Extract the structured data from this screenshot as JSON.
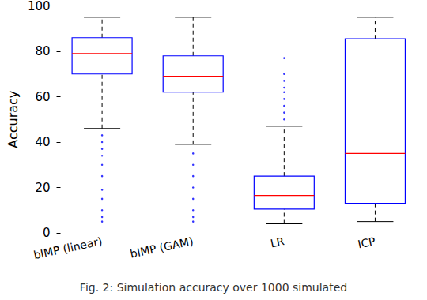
{
  "chart_data": {
    "type": "boxplot",
    "y_label": "Accuracy",
    "caption": "Fig. 2: Simulation accuracy over 1000 simulated",
    "categories": [
      "bIMP (linear)",
      "bIMP (GAM)",
      "LR",
      "ICP"
    ],
    "values": [
      [
        46,
        70,
        79,
        86,
        95
      ],
      [
        39,
        62,
        69,
        78,
        95
      ],
      [
        4,
        10.5,
        16.5,
        25,
        47
      ],
      [
        5,
        13,
        35,
        85.5,
        95
      ]
    ],
    "outliers": [
      [
        43,
        40,
        37,
        34,
        30,
        25,
        19,
        15,
        10,
        7,
        5
      ],
      [
        35,
        30,
        25,
        20,
        15,
        10,
        7,
        5
      ],
      [
        50,
        53,
        56,
        59,
        62,
        64,
        67,
        70,
        77
      ],
      []
    ],
    "color": "#0000ff",
    "ylim": [
      0,
      100
    ],
    "yticks": [
      0,
      20,
      40,
      60,
      80,
      100
    ],
    "grid": false
  }
}
